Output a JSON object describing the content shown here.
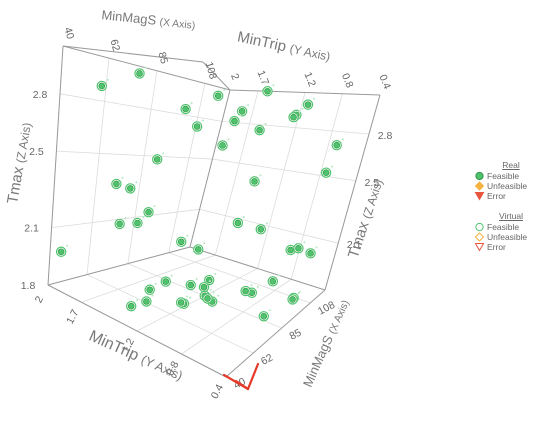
{
  "chart_data": {
    "type": "scatter3d",
    "axes": {
      "x": {
        "label": "MinMagS",
        "suffix": "(X Axis)",
        "ticks": [
          "40",
          "62",
          "85",
          "108"
        ],
        "range": [
          40,
          120
        ]
      },
      "y": {
        "label": "MinTrip",
        "suffix": "(Y Axis)",
        "ticks": [
          "2",
          "1.7",
          "1.2",
          "0.8",
          "0.4"
        ],
        "range": [
          0.4,
          2.0
        ]
      },
      "z": {
        "label": "Tmax",
        "suffix": "(Z Axis)",
        "ticks": [
          "1.8",
          "2.1",
          "2.5",
          "2.8"
        ],
        "range": [
          1.8,
          3.05
        ]
      }
    },
    "legend": {
      "placement": "right",
      "groups": [
        {
          "title": "Real",
          "items": [
            {
              "label": "Feasible",
              "symbol": "circle-filled",
              "color": "#4fc36b"
            },
            {
              "label": "Unfeasible",
              "symbol": "diamond-filled",
              "color": "#f5b240"
            },
            {
              "label": "Error",
              "symbol": "triangle-filled",
              "color": "#e8553f"
            }
          ]
        },
        {
          "title": "Virtual",
          "items": [
            {
              "label": "Feasible",
              "symbol": "circle-open",
              "color": "#4fc36b"
            },
            {
              "label": "Unfeasible",
              "symbol": "diamond-open",
              "color": "#f5b240"
            },
            {
              "label": "Error",
              "symbol": "triangle-open",
              "color": "#e8553f"
            }
          ]
        }
      ]
    },
    "series": [
      {
        "name": "Feasible",
        "color": "#4fc36b",
        "points": [
          [
            110,
            0.55,
            2.55
          ],
          [
            110,
            0.5,
            2.72
          ],
          [
            110,
            0.9,
            2.95
          ],
          [
            110,
            1.0,
            2.88
          ],
          [
            100,
            0.8,
            2.86
          ],
          [
            75,
            0.8,
            2.86
          ],
          [
            85,
            1.3,
            2.93
          ],
          [
            108,
            1.6,
            2.8
          ],
          [
            120,
            1.6,
            3.05
          ],
          [
            95,
            1.4,
            2.64
          ],
          [
            100,
            1.1,
            2.45
          ],
          [
            75,
            0.6,
            2.78
          ],
          [
            60,
            0.95,
            2.76
          ],
          [
            60,
            1.6,
            2.98
          ],
          [
            40,
            1.55,
            2.88
          ],
          [
            70,
            1.3,
            2.83
          ],
          [
            62,
            1.4,
            2.55
          ],
          [
            100,
            1.2,
            2.18
          ],
          [
            70,
            1.95,
            2.33
          ],
          [
            75,
            1.9,
            2.31
          ],
          [
            70,
            1.6,
            2.23
          ],
          [
            40,
            1.9,
            2.0
          ],
          [
            70,
            1.7,
            2.15
          ],
          [
            90,
            1.4,
            2.01
          ],
          [
            85,
            1.5,
            2.05
          ],
          [
            60,
            1.7,
            2.16
          ],
          [
            100,
            0.95,
            2.18
          ],
          [
            110,
            0.75,
            2.05
          ],
          [
            112,
            0.7,
            2.06
          ],
          [
            115,
            0.6,
            2.03
          ],
          [
            50,
            0.9,
            1.96
          ],
          [
            62,
            0.8,
            1.95
          ],
          [
            65,
            1.3,
            1.93
          ],
          [
            55,
            1.3,
            1.92
          ],
          [
            80,
            1.1,
            1.93
          ],
          [
            70,
            1.0,
            1.95
          ],
          [
            70,
            0.4,
            1.93
          ],
          [
            90,
            0.6,
            1.98
          ],
          [
            105,
            0.55,
            1.82
          ],
          [
            100,
            0.5,
            1.85
          ],
          [
            90,
            0.8,
            1.88
          ],
          [
            100,
            1.0,
            1.8
          ],
          [
            85,
            1.2,
            1.8
          ],
          [
            80,
            1.1,
            1.83
          ],
          [
            40,
            1.25,
            1.9
          ],
          [
            60,
            1.4,
            1.82
          ],
          [
            62,
            1.1,
            1.88
          ],
          [
            95,
            1.5,
            1.75
          ]
        ]
      }
    ]
  }
}
